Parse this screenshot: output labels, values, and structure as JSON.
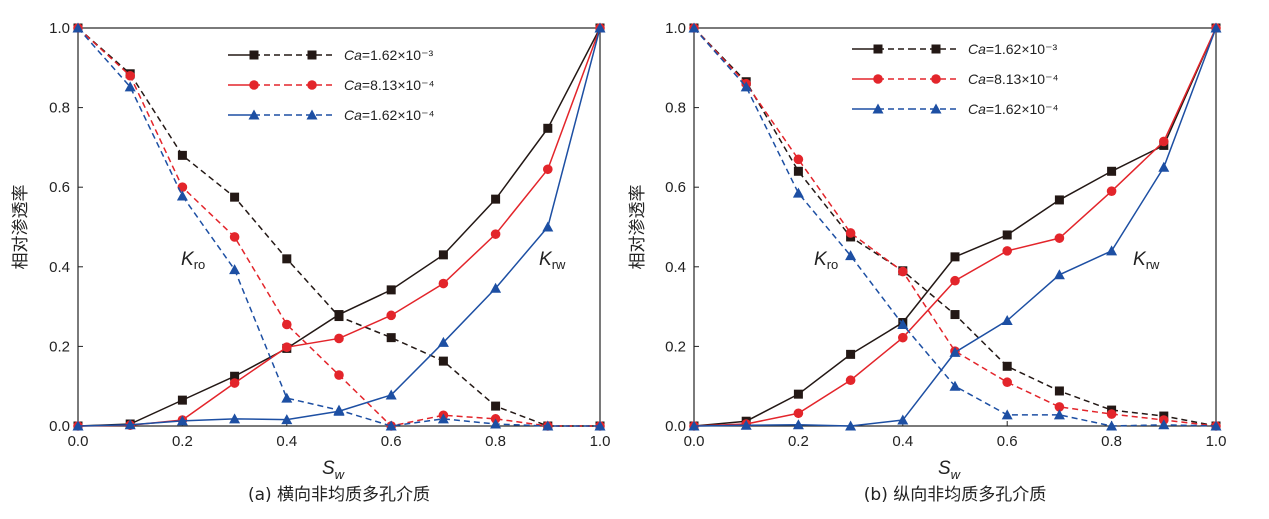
{
  "colors": {
    "black": "#231815",
    "red": "#e3252b",
    "blue": "#1d4fa3"
  },
  "chart_data": [
    {
      "type": "line",
      "caption": "(a) 横向非均质多孔介质",
      "ylabel": "相对渗透率",
      "xlabel": "S",
      "xlabel_sub": "w",
      "xlim": [
        0,
        1
      ],
      "ylim": [
        0,
        1
      ],
      "xticks": [
        "0.0",
        "0.2",
        "0.4",
        "0.6",
        "0.8",
        "1.0"
      ],
      "yticks": [
        "0.0",
        "0.2",
        "0.4",
        "0.6",
        "0.8",
        "1.0"
      ],
      "kro_label": "K",
      "kro_sub": "ro",
      "krw_label": "K",
      "krw_sub": "rw",
      "x": [
        0.0,
        0.1,
        0.2,
        0.3,
        0.4,
        0.5,
        0.6,
        0.7,
        0.8,
        0.9,
        1.0
      ],
      "series": [
        {
          "name": "Ca=1.62×10⁻³",
          "ca": "Ca",
          "val": "=1.62×10⁻³",
          "marker": "square",
          "color": "#231815",
          "krw": [
            0.0,
            0.005,
            0.065,
            0.125,
            0.195,
            0.28,
            0.342,
            0.43,
            0.57,
            0.748,
            1.0
          ],
          "kro": [
            1.0,
            0.885,
            0.68,
            0.575,
            0.42,
            0.275,
            0.222,
            0.163,
            0.05,
            0.0,
            0.0
          ]
        },
        {
          "name": "Ca=8.13×10⁻⁴",
          "ca": "Ca",
          "val": "=8.13×10⁻⁴",
          "marker": "circle",
          "color": "#e3252b",
          "krw": [
            0.0,
            0.002,
            0.015,
            0.108,
            0.198,
            0.22,
            0.278,
            0.358,
            0.482,
            0.645,
            1.0
          ],
          "kro": [
            1.0,
            0.88,
            0.6,
            0.475,
            0.255,
            0.128,
            0.0,
            0.027,
            0.018,
            0.0,
            0.0
          ]
        },
        {
          "name": "Ca=1.62×10⁻⁴",
          "ca": "Ca",
          "val": "=1.62×10⁻⁴",
          "marker": "triangle",
          "color": "#1d4fa3",
          "krw": [
            0.0,
            0.003,
            0.013,
            0.018,
            0.016,
            0.037,
            0.078,
            0.21,
            0.346,
            0.5,
            1.0
          ],
          "kro": [
            1.0,
            0.852,
            0.578,
            0.393,
            0.07,
            0.04,
            0.0,
            0.018,
            0.005,
            0.0,
            0.0
          ]
        }
      ]
    },
    {
      "type": "line",
      "caption": "(b) 纵向非均质多孔介质",
      "ylabel": "相对渗透率",
      "xlabel": "S",
      "xlabel_sub": "w",
      "xlim": [
        0,
        1
      ],
      "ylim": [
        0,
        1
      ],
      "xticks": [
        "0.0",
        "0.2",
        "0.4",
        "0.6",
        "0.8",
        "1.0"
      ],
      "yticks": [
        "0.0",
        "0.2",
        "0.4",
        "0.6",
        "0.8",
        "1.0"
      ],
      "kro_label": "K",
      "kro_sub": "ro",
      "krw_label": "K",
      "krw_sub": "rw",
      "x": [
        0.0,
        0.1,
        0.2,
        0.3,
        0.4,
        0.5,
        0.6,
        0.7,
        0.8,
        0.9,
        1.0
      ],
      "series": [
        {
          "name": "Ca=1.62×10⁻³",
          "ca": "Ca",
          "val": "=1.62×10⁻³",
          "marker": "square",
          "color": "#231815",
          "krw": [
            0.0,
            0.012,
            0.08,
            0.18,
            0.26,
            0.425,
            0.48,
            0.568,
            0.64,
            0.705,
            1.0
          ],
          "kro": [
            1.0,
            0.865,
            0.64,
            0.475,
            0.39,
            0.28,
            0.15,
            0.088,
            0.04,
            0.025,
            0.0
          ]
        },
        {
          "name": "Ca=8.13×10⁻⁴",
          "ca": "Ca",
          "val": "=8.13×10⁻⁴",
          "marker": "circle",
          "color": "#e3252b",
          "krw": [
            0.0,
            0.005,
            0.032,
            0.115,
            0.222,
            0.365,
            0.44,
            0.472,
            0.59,
            0.715,
            1.0
          ],
          "kro": [
            1.0,
            0.86,
            0.67,
            0.485,
            0.388,
            0.188,
            0.11,
            0.048,
            0.03,
            0.015,
            0.0
          ]
        },
        {
          "name": "Ca=1.62×10⁻⁴",
          "ca": "Ca",
          "val": "=1.62×10⁻⁴",
          "marker": "triangle",
          "color": "#1d4fa3",
          "krw": [
            0.0,
            0.002,
            0.003,
            0.0,
            0.015,
            0.185,
            0.265,
            0.38,
            0.44,
            0.65,
            1.0
          ],
          "kro": [
            1.0,
            0.852,
            0.585,
            0.428,
            0.255,
            0.1,
            0.028,
            0.028,
            0.0,
            0.003,
            0.0
          ]
        }
      ]
    }
  ]
}
